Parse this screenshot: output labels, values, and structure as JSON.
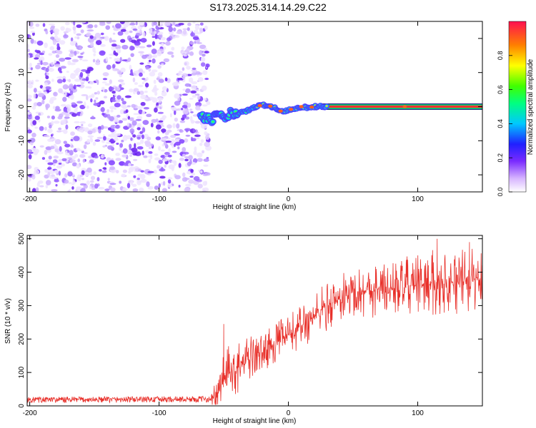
{
  "title": "S173.2025.314.14.29.C22",
  "chart_data": [
    {
      "type": "heatmap",
      "xlabel": "Height of straight line (km)",
      "ylabel": "Frequency (Hz)",
      "xlim": [
        -202,
        150
      ],
      "ylim": [
        -25,
        25
      ],
      "xticks": [
        -200,
        -100,
        0,
        100
      ],
      "yticks": [
        -20,
        -10,
        0,
        10,
        20
      ],
      "grid": false,
      "noise_region_km": [
        -202,
        -65
      ],
      "signal_track": {
        "x": [
          -68,
          -60,
          -55,
          -50,
          -45,
          -40,
          -35,
          -30,
          -25,
          -20,
          -15,
          -10,
          -5,
          0,
          5,
          10,
          15,
          20,
          25,
          30,
          40,
          60,
          80,
          90,
          100,
          150
        ],
        "y": [
          -2.5,
          -4,
          -2,
          -3.5,
          -2,
          -2.5,
          -1.5,
          -1,
          0,
          0.5,
          0.3,
          -0.5,
          -1.5,
          -1,
          -0.5,
          0,
          -0.3,
          0,
          0,
          0,
          0,
          0,
          0,
          0,
          0,
          0
        ]
      },
      "colorbar": {
        "label": "Normalized spectral amplitude",
        "range": [
          0,
          1
        ],
        "ticks": [
          "0.0",
          "0.2",
          "0.4",
          "0.6",
          "0.8"
        ]
      }
    },
    {
      "type": "line",
      "xlabel": "Height of straight line (km)",
      "ylabel": "SNR (10 * v/v)",
      "xlim": [
        -202,
        150
      ],
      "ylim": [
        0,
        510
      ],
      "xticks": [
        -200,
        -100,
        0,
        100
      ],
      "yticks": [
        0,
        100,
        200,
        300,
        400,
        500
      ],
      "grid": false,
      "series": [
        {
          "name": "SNR",
          "color": "#e8302a",
          "trend_x": [
            -202,
            -60,
            -55,
            -50,
            -40,
            -30,
            -20,
            -10,
            0,
            10,
            20,
            30,
            40,
            50,
            60,
            70,
            80,
            90,
            100,
            110,
            120,
            130,
            140,
            150
          ],
          "trend_y": [
            18,
            20,
            25,
            90,
            110,
            140,
            160,
            190,
            210,
            240,
            270,
            300,
            320,
            340,
            345,
            350,
            352,
            355,
            362,
            368,
            370,
            372,
            375,
            378
          ],
          "spread": [
            9,
            9,
            60,
            60,
            55,
            50,
            40,
            45,
            45,
            50,
            55,
            55,
            55,
            55,
            60,
            60,
            60,
            65,
            65,
            70,
            70,
            70,
            70,
            70
          ],
          "peak_points": [
            [
              -50,
              245
            ],
            [
              115,
              500
            ],
            [
              140,
              490
            ]
          ]
        }
      ]
    }
  ]
}
